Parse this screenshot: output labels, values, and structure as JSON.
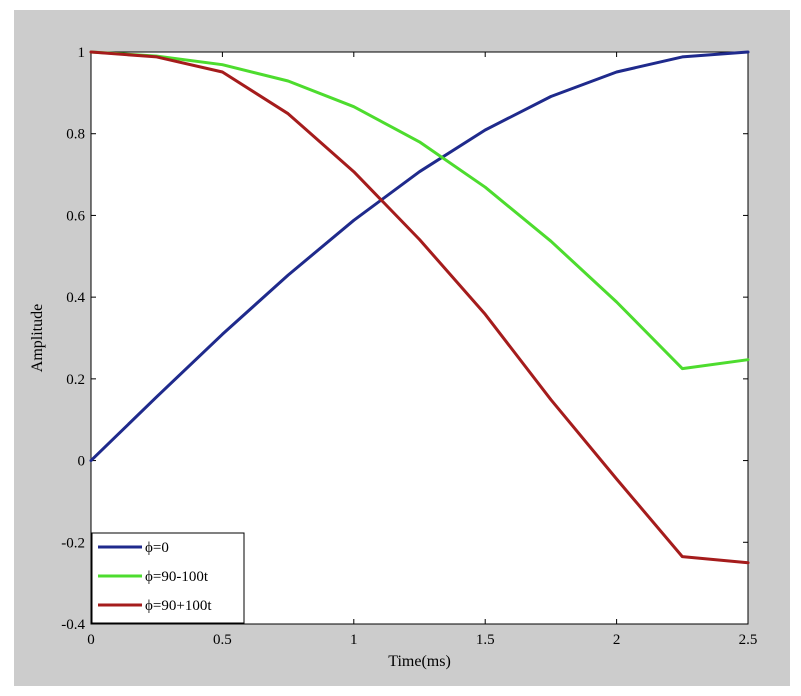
{
  "chart_data": {
    "type": "line",
    "title": "",
    "xlabel": "Time(ms)",
    "ylabel": "Amplitude",
    "xlim": [
      0,
      2.5
    ],
    "ylim": [
      -0.4,
      1
    ],
    "xticks": [
      0,
      0.5,
      1,
      1.5,
      2,
      2.5
    ],
    "xtick_labels": [
      "0",
      "0.5",
      "1",
      "1.5",
      "2",
      "2.5"
    ],
    "yticks": [
      -0.4,
      -0.2,
      0,
      0.2,
      0.4,
      0.6,
      0.8,
      1
    ],
    "ytick_labels": [
      "-0.4",
      "-0.2",
      "0",
      "0.2",
      "0.4",
      "0.6",
      "0.8",
      "1"
    ],
    "grid": false,
    "legend_position": "bottom-left",
    "x": [
      0,
      0.25,
      0.5,
      0.75,
      1,
      1.25,
      1.5,
      1.75,
      2,
      2.25,
      2.5
    ],
    "series": [
      {
        "name": "ϕ=0",
        "color": "#1f2a8c",
        "values": [
          0,
          0.156,
          0.309,
          0.454,
          0.588,
          0.707,
          0.809,
          0.891,
          0.951,
          0.988,
          1
        ]
      },
      {
        "name": "ϕ=90-100t",
        "color": "#4ddc2e",
        "values": [
          1,
          0.99,
          0.969,
          0.929,
          0.866,
          0.78,
          0.669,
          0.537,
          0.388,
          0.225,
          0.247
        ]
      },
      {
        "name": "ϕ=90+100t",
        "color": "#a51c1c",
        "values": [
          1,
          0.988,
          0.951,
          0.849,
          0.707,
          0.541,
          0.358,
          0.149,
          -0.045,
          -0.235,
          -0.25
        ]
      }
    ]
  }
}
